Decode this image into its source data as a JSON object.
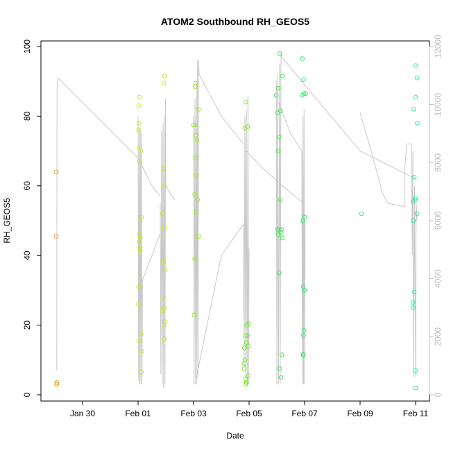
{
  "chart_data": {
    "type": "scatter",
    "title": "ATOM2 Southbound RH_GEOS5",
    "xlabel": "Date",
    "ylabel": "RH_GEOS5",
    "x_unit": "days relative to Feb 01",
    "xlim": [
      -3.5,
      10.8
    ],
    "ylim": [
      0,
      100
    ],
    "y2lim": [
      0,
      12000
    ],
    "x_ticks": [
      {
        "value": -2,
        "label": "Jan 30"
      },
      {
        "value": 0,
        "label": "Feb 01"
      },
      {
        "value": 2,
        "label": "Feb 03"
      },
      {
        "value": 4,
        "label": "Feb 05"
      },
      {
        "value": 6,
        "label": "Feb 07"
      },
      {
        "value": 8,
        "label": "Feb 09"
      },
      {
        "value": 10,
        "label": "Feb 11"
      }
    ],
    "y_ticks": [
      {
        "value": 0,
        "label": "0"
      },
      {
        "value": 20,
        "label": "20"
      },
      {
        "value": 40,
        "label": "40"
      },
      {
        "value": 60,
        "label": "60"
      },
      {
        "value": 80,
        "label": "80"
      },
      {
        "value": 100,
        "label": "100"
      }
    ],
    "y2_ticks": [
      {
        "value": 0,
        "label": "0"
      },
      {
        "value": 2000,
        "label": "2000"
      },
      {
        "value": 4000,
        "label": "4000"
      },
      {
        "value": 6000,
        "label": "6000"
      },
      {
        "value": 8000,
        "label": "8000"
      },
      {
        "value": 10000,
        "label": "10000"
      },
      {
        "value": 12000,
        "label": "12000"
      }
    ],
    "grid": false,
    "colors": {
      "altitude_line": "#c8c8c8",
      "right_axis": "#bdbdbd"
    },
    "series": [
      {
        "color": "#e8a020",
        "points": [
          [
            -2.95,
            64
          ],
          [
            -2.95,
            45.5
          ],
          [
            -2.93,
            3.5
          ],
          [
            -2.93,
            3.0
          ]
        ]
      },
      {
        "color": "#c8e820",
        "points": [
          [
            0.05,
            85.5
          ],
          [
            0.02,
            83
          ],
          [
            0.03,
            78
          ],
          [
            0.02,
            76
          ],
          [
            0.06,
            71
          ],
          [
            0.1,
            70
          ],
          [
            0.05,
            67
          ],
          [
            0.12,
            51
          ],
          [
            0.05,
            46
          ],
          [
            0.08,
            45
          ],
          [
            0.04,
            44
          ],
          [
            0.06,
            42
          ],
          [
            0.08,
            41.5
          ],
          [
            0.02,
            31
          ],
          [
            0.01,
            26
          ],
          [
            0.02,
            15.5
          ],
          [
            0.11,
            17.5
          ],
          [
            0.14,
            12.5
          ],
          [
            0.12,
            6.5
          ],
          [
            0.95,
            91.5
          ],
          [
            0.93,
            89.5
          ],
          [
            0.92,
            65
          ],
          [
            0.94,
            60
          ],
          [
            0.88,
            52
          ],
          [
            0.95,
            48
          ],
          [
            0.93,
            38
          ],
          [
            0.97,
            36
          ],
          [
            0.92,
            28
          ],
          [
            0.95,
            25
          ],
          [
            0.88,
            24
          ],
          [
            0.97,
            21
          ],
          [
            0.93,
            20
          ],
          [
            0.94,
            16
          ]
        ]
      },
      {
        "color": "#a0e820",
        "points": [
          [
            2.08,
            89.5
          ],
          [
            2.06,
            88.5
          ],
          [
            2.18,
            82
          ],
          [
            2.06,
            77.5
          ],
          [
            2.0,
            77.5
          ],
          [
            2.08,
            74.5
          ],
          [
            2.12,
            73
          ],
          [
            2.08,
            68
          ],
          [
            2.1,
            63
          ],
          [
            2.04,
            57.5
          ],
          [
            2.15,
            56
          ],
          [
            2.1,
            52.5
          ],
          [
            2.18,
            45.5
          ],
          [
            2.04,
            39
          ],
          [
            2.02,
            23
          ]
        ]
      },
      {
        "color": "#78e830",
        "points": [
          [
            3.88,
            84
          ],
          [
            3.95,
            77
          ],
          [
            3.85,
            76.5
          ],
          [
            3.92,
            20
          ],
          [
            3.98,
            20.5
          ],
          [
            3.88,
            17
          ],
          [
            3.95,
            17
          ],
          [
            3.9,
            15
          ],
          [
            3.97,
            14
          ],
          [
            3.83,
            13.5
          ],
          [
            3.85,
            10
          ],
          [
            3.82,
            9
          ],
          [
            3.82,
            7.5
          ],
          [
            3.97,
            5.5
          ],
          [
            3.88,
            4.5
          ],
          [
            3.9,
            3.5
          ],
          [
            3.88,
            3
          ]
        ]
      },
      {
        "color": "#40e850",
        "points": [
          [
            5.1,
            98
          ],
          [
            5.2,
            91.5
          ],
          [
            5.05,
            88
          ],
          [
            4.98,
            86
          ],
          [
            5.13,
            81.5
          ],
          [
            5.03,
            81
          ],
          [
            5.08,
            74
          ],
          [
            5.05,
            70
          ],
          [
            5.12,
            56
          ],
          [
            5.02,
            47.5
          ],
          [
            5.1,
            47.5
          ],
          [
            5.18,
            47.5
          ],
          [
            5.05,
            46
          ],
          [
            5.15,
            46.5
          ],
          [
            5.2,
            45
          ],
          [
            5.08,
            35
          ],
          [
            5.18,
            11.5
          ],
          [
            5.1,
            7.5
          ],
          [
            5.15,
            5
          ]
        ]
      },
      {
        "color": "#30e878",
        "points": [
          [
            5.92,
            96.5
          ],
          [
            5.96,
            90.5
          ],
          [
            5.98,
            86.5
          ],
          [
            6.04,
            86.5
          ],
          [
            5.92,
            86
          ],
          [
            5.94,
            50
          ],
          [
            6.0,
            51
          ],
          [
            5.95,
            31
          ],
          [
            6.0,
            30
          ],
          [
            5.98,
            18.5
          ],
          [
            5.96,
            17
          ],
          [
            5.94,
            11.5
          ],
          [
            5.96,
            11.5
          ]
        ]
      },
      {
        "color": "#30e8b0",
        "points": [
          [
            8.05,
            52
          ],
          [
            10.0,
            94.5
          ],
          [
            10.05,
            91
          ],
          [
            10.0,
            85.5
          ],
          [
            9.93,
            82
          ],
          [
            10.06,
            78
          ],
          [
            9.95,
            62.5
          ],
          [
            10.0,
            56.5
          ],
          [
            9.98,
            56
          ],
          [
            9.9,
            55.5
          ],
          [
            10.05,
            52
          ],
          [
            9.92,
            50
          ],
          [
            9.95,
            29.5
          ],
          [
            9.9,
            26.5
          ],
          [
            9.92,
            25
          ],
          [
            10.0,
            7
          ],
          [
            10.0,
            2
          ]
        ]
      }
    ],
    "altitude_segments": [
      [
        [
          -2.93,
          7
        ],
        [
          -2.92,
          88
        ],
        [
          -2.88,
          91
        ],
        [
          -2.82,
          90.5
        ],
        [
          -1.5,
          80
        ],
        [
          0.0,
          68
        ],
        [
          0.5,
          60
        ],
        [
          0.8,
          57
        ]
      ],
      [
        [
          0.0,
          80
        ],
        [
          0.02,
          4
        ],
        [
          0.04,
          77
        ],
        [
          0.06,
          3
        ],
        [
          0.08,
          76
        ],
        [
          0.1,
          3
        ],
        [
          0.12,
          75
        ],
        [
          0.14,
          3
        ],
        [
          0.16,
          33
        ],
        [
          0.5,
          40
        ],
        [
          0.78,
          46
        ]
      ],
      [
        [
          0.8,
          55
        ],
        [
          0.82,
          6
        ],
        [
          0.85,
          76
        ],
        [
          0.87,
          3
        ],
        [
          0.9,
          78
        ],
        [
          0.92,
          2
        ],
        [
          0.95,
          80
        ],
        [
          0.97,
          3
        ],
        [
          0.99,
          85
        ]
      ],
      [
        [
          0.99,
          85
        ],
        [
          1.0,
          60
        ],
        [
          1.3,
          56
        ]
      ],
      [
        [
          2.0,
          80
        ],
        [
          2.02,
          3
        ],
        [
          2.05,
          85
        ],
        [
          2.07,
          3
        ],
        [
          2.1,
          90
        ],
        [
          2.12,
          3
        ],
        [
          2.14,
          96
        ],
        [
          2.16,
          5
        ],
        [
          2.18,
          96
        ],
        [
          2.2,
          92
        ],
        [
          2.6,
          86
        ],
        [
          3.0,
          80
        ],
        [
          3.8,
          72
        ]
      ],
      [
        [
          2.1,
          5
        ],
        [
          3.0,
          40
        ],
        [
          3.8,
          49
        ],
        [
          3.82,
          8
        ],
        [
          3.85,
          80
        ],
        [
          3.88,
          3
        ],
        [
          3.9,
          82
        ],
        [
          3.93,
          3
        ],
        [
          3.96,
          86
        ],
        [
          3.98,
          3
        ],
        [
          4.0,
          42
        ]
      ],
      [
        [
          3.9,
          70
        ],
        [
          4.5,
          65
        ],
        [
          5.2,
          60
        ],
        [
          5.5,
          58
        ],
        [
          5.8,
          56
        ],
        [
          6.0,
          55
        ]
      ],
      [
        [
          4.98,
          90
        ],
        [
          5.0,
          3
        ],
        [
          5.03,
          92
        ],
        [
          5.06,
          3
        ],
        [
          5.1,
          95
        ],
        [
          5.12,
          3
        ],
        [
          5.15,
          98
        ],
        [
          5.18,
          97
        ],
        [
          6.0,
          89
        ],
        [
          8.0,
          70
        ],
        [
          10.0,
          62
        ]
      ],
      [
        [
          5.0,
          85
        ],
        [
          5.5,
          75
        ],
        [
          5.9,
          70
        ],
        [
          5.92,
          3
        ],
        [
          5.94,
          80
        ],
        [
          5.96,
          3
        ],
        [
          5.98,
          82
        ],
        [
          6.0,
          3
        ],
        [
          6.02,
          50
        ]
      ],
      [
        [
          8.0,
          81
        ],
        [
          8.4,
          70
        ],
        [
          8.8,
          58
        ],
        [
          9.0,
          55
        ],
        [
          9.6,
          54
        ],
        [
          9.62,
          66
        ],
        [
          9.68,
          72
        ],
        [
          9.85,
          72
        ],
        [
          9.88,
          40
        ],
        [
          9.9,
          70
        ],
        [
          9.93,
          5
        ],
        [
          9.96,
          60
        ],
        [
          10.0,
          5
        ],
        [
          10.02,
          55
        ],
        [
          10.05,
          50
        ]
      ]
    ]
  }
}
